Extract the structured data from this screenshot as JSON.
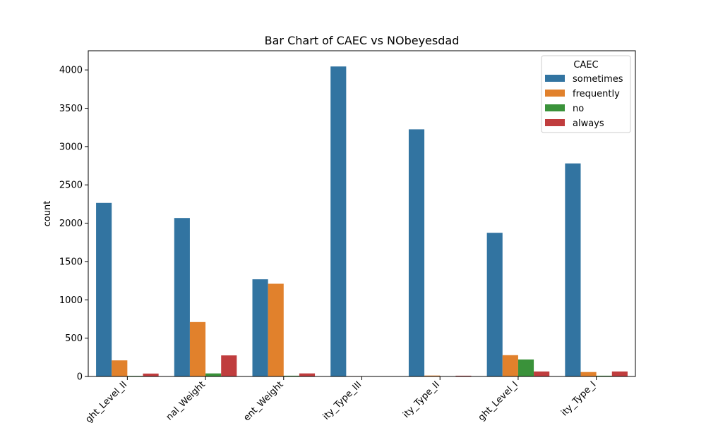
{
  "chart_data": {
    "type": "bar",
    "title": "Bar Chart of CAEC vs NObeyesdad",
    "xlabel": "",
    "ylabel": "count",
    "ylim": [
      0,
      4250
    ],
    "yticks": [
      0,
      500,
      1000,
      1500,
      2000,
      2500,
      3000,
      3500,
      4000
    ],
    "categories": [
      "ght_Level_II",
      "nal_Weight",
      "ent_Weight",
      "ity_Type_III",
      "ity_Type_II",
      "ght_Level_I",
      "ity_Type_I"
    ],
    "legend": {
      "title": "CAEC",
      "position": "top-right"
    },
    "series": [
      {
        "name": "sometimes",
        "color": "#3274a1",
        "values": [
          2265,
          2068,
          1268,
          4045,
          3225,
          1875,
          2780
        ]
      },
      {
        "name": "frequently",
        "color": "#e1812c",
        "values": [
          210,
          710,
          1210,
          5,
          12,
          278,
          58
        ]
      },
      {
        "name": "no",
        "color": "#3a923a",
        "values": [
          8,
          40,
          10,
          0,
          0,
          222,
          10
        ]
      },
      {
        "name": "always",
        "color": "#c03d3e",
        "values": [
          38,
          275,
          40,
          0,
          10,
          65,
          65
        ]
      }
    ],
    "grid": false
  }
}
